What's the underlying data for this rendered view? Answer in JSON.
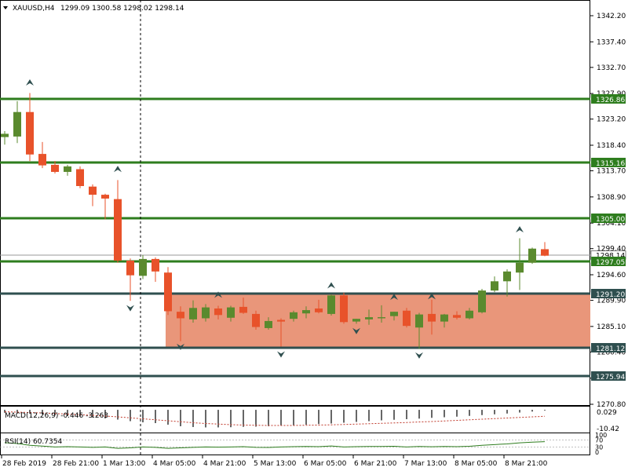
{
  "chart_data": {
    "type": "candlestick",
    "symbol_header": "XAUUSD,H4",
    "ohlc_header": "1299.09 1300.58 1298.02 1298.14",
    "colors": {
      "bull": "#5a8a2e",
      "bear": "#e8522a",
      "grid_line": "#2e7d1e",
      "dark_line": "#2f4f4f",
      "zone": "#e9967a"
    },
    "y_ticks": [
      "1342.20",
      "1337.40",
      "1332.70",
      "1327.90",
      "1323.20",
      "1318.40",
      "1313.70",
      "1308.90",
      "1304.10",
      "1299.40",
      "1294.60",
      "1289.90",
      "1285.10",
      "1280.40",
      "1275.60",
      "1270.80"
    ],
    "x_ticks": [
      "28 Feb 2019",
      "28 Feb 21:00",
      "1 Mar 13:00",
      "4 Mar 05:00",
      "4 Mar 21:00",
      "5 Mar 13:00",
      "6 Mar 05:00",
      "6 Mar 21:00",
      "7 Mar 13:00",
      "8 Mar 05:00",
      "8 Mar 21:00"
    ],
    "levels": [
      {
        "price": 1326.86,
        "label": "1326.86",
        "color": "#2e7d1e"
      },
      {
        "price": 1315.16,
        "label": "1315.16",
        "color": "#2e7d1e"
      },
      {
        "price": 1305.0,
        "label": "1305.00",
        "color": "#2e7d1e"
      },
      {
        "price": 1297.05,
        "label": "1297.05",
        "color": "#2e7d1e"
      },
      {
        "price": 1291.2,
        "label": "1291.20",
        "color": "#2f4f4f"
      },
      {
        "price": 1281.12,
        "label": "1281.12",
        "color": "#2f4f4f"
      },
      {
        "price": 1275.94,
        "label": "1275.94",
        "color": "#2f4f4f"
      }
    ],
    "current_price_label": "1298.14",
    "zone": {
      "from": 1281.12,
      "to": 1291.2
    },
    "candles": [
      {
        "o": 1319.9,
        "h": 1321.0,
        "l": 1318.5,
        "c": 1320.5
      },
      {
        "o": 1320.0,
        "h": 1326.5,
        "l": 1318.8,
        "c": 1324.5
      },
      {
        "o": 1324.5,
        "h": 1328.0,
        "l": 1315.5,
        "c": 1316.7
      },
      {
        "o": 1316.8,
        "h": 1319.0,
        "l": 1314.2,
        "c": 1314.7
      },
      {
        "o": 1314.8,
        "h": 1315.5,
        "l": 1313.2,
        "c": 1313.5
      },
      {
        "o": 1313.5,
        "h": 1314.8,
        "l": 1312.8,
        "c": 1314.5
      },
      {
        "o": 1314.0,
        "h": 1314.5,
        "l": 1310.5,
        "c": 1310.9
      },
      {
        "o": 1310.8,
        "h": 1311.2,
        "l": 1307.2,
        "c": 1309.3
      },
      {
        "o": 1309.3,
        "h": 1309.5,
        "l": 1304.8,
        "c": 1308.6
      },
      {
        "o": 1308.5,
        "h": 1312.0,
        "l": 1296.8,
        "c": 1297.2
      },
      {
        "o": 1297.2,
        "h": 1297.6,
        "l": 1289.8,
        "c": 1294.5
      },
      {
        "o": 1294.4,
        "h": 1298.2,
        "l": 1293.8,
        "c": 1297.5
      },
      {
        "o": 1297.5,
        "h": 1297.8,
        "l": 1293.3,
        "c": 1295.2
      },
      {
        "o": 1295.0,
        "h": 1296.0,
        "l": 1287.2,
        "c": 1287.9
      },
      {
        "o": 1287.8,
        "h": 1288.8,
        "l": 1282.4,
        "c": 1286.6
      },
      {
        "o": 1286.4,
        "h": 1289.9,
        "l": 1285.8,
        "c": 1288.5
      },
      {
        "o": 1286.6,
        "h": 1289.2,
        "l": 1286.0,
        "c": 1288.6
      },
      {
        "o": 1288.4,
        "h": 1288.9,
        "l": 1286.4,
        "c": 1287.2
      },
      {
        "o": 1286.7,
        "h": 1288.9,
        "l": 1286.0,
        "c": 1288.6
      },
      {
        "o": 1288.7,
        "h": 1290.4,
        "l": 1287.4,
        "c": 1287.6
      },
      {
        "o": 1287.4,
        "h": 1288.0,
        "l": 1284.5,
        "c": 1285.0
      },
      {
        "o": 1284.8,
        "h": 1286.8,
        "l": 1284.5,
        "c": 1286.1
      },
      {
        "o": 1286.3,
        "h": 1286.6,
        "l": 1281.4,
        "c": 1286.0
      },
      {
        "o": 1286.5,
        "h": 1288.0,
        "l": 1286.0,
        "c": 1287.7
      },
      {
        "o": 1287.5,
        "h": 1288.8,
        "l": 1286.6,
        "c": 1288.1
      },
      {
        "o": 1288.4,
        "h": 1290.0,
        "l": 1287.5,
        "c": 1287.7
      },
      {
        "o": 1287.4,
        "h": 1291.0,
        "l": 1287.1,
        "c": 1290.8
      },
      {
        "o": 1290.8,
        "h": 1291.3,
        "l": 1285.6,
        "c": 1285.9
      },
      {
        "o": 1286.0,
        "h": 1286.5,
        "l": 1285.6,
        "c": 1286.5
      },
      {
        "o": 1286.4,
        "h": 1288.2,
        "l": 1285.4,
        "c": 1286.8
      },
      {
        "o": 1286.6,
        "h": 1289.0,
        "l": 1285.8,
        "c": 1286.8
      },
      {
        "o": 1287.0,
        "h": 1287.8,
        "l": 1286.2,
        "c": 1287.8
      },
      {
        "o": 1288.0,
        "h": 1288.5,
        "l": 1284.9,
        "c": 1285.2
      },
      {
        "o": 1284.9,
        "h": 1287.6,
        "l": 1281.0,
        "c": 1287.3
      },
      {
        "o": 1287.4,
        "h": 1290.0,
        "l": 1283.6,
        "c": 1286.0
      },
      {
        "o": 1286.0,
        "h": 1287.4,
        "l": 1284.9,
        "c": 1287.3
      },
      {
        "o": 1287.2,
        "h": 1287.9,
        "l": 1286.4,
        "c": 1286.7
      },
      {
        "o": 1286.6,
        "h": 1288.5,
        "l": 1286.4,
        "c": 1288.0
      },
      {
        "o": 1287.7,
        "h": 1292.0,
        "l": 1287.5,
        "c": 1291.7
      },
      {
        "o": 1291.7,
        "h": 1294.3,
        "l": 1291.4,
        "c": 1293.4
      },
      {
        "o": 1293.4,
        "h": 1295.6,
        "l": 1290.6,
        "c": 1295.2
      },
      {
        "o": 1295.0,
        "h": 1301.3,
        "l": 1291.8,
        "c": 1296.8
      },
      {
        "o": 1296.8,
        "h": 1299.6,
        "l": 1296.6,
        "c": 1299.4
      },
      {
        "o": 1299.3,
        "h": 1300.6,
        "l": 1298.0,
        "c": 1298.1
      }
    ],
    "fractals_up": [
      {
        "i": 2,
        "price": 1329.8
      },
      {
        "i": 9,
        "price": 1313.9
      },
      {
        "i": 17,
        "price": 1290.8
      },
      {
        "i": 26,
        "price": 1292.5
      },
      {
        "i": 31,
        "price": 1290.4
      },
      {
        "i": 34,
        "price": 1290.5
      },
      {
        "i": 41,
        "price": 1302.8
      }
    ],
    "fractals_down": [
      {
        "i": 10,
        "price": 1288.6
      },
      {
        "i": 14,
        "price": 1281.5
      },
      {
        "i": 22,
        "price": 1280.1
      },
      {
        "i": 28,
        "price": 1284.4
      },
      {
        "i": 33,
        "price": 1279.9
      }
    ],
    "macd": {
      "label": "MACD(12,26,9) -0.446 -3.263",
      "y_ticks": [
        "0.029",
        "-10.42"
      ],
      "ylim": [
        -10.42,
        0.029
      ],
      "hist": [
        -1.5,
        -1.8,
        -2.0,
        -2.4,
        -2.8,
        -3.2,
        -3.6,
        -4.0,
        -4.4,
        -5.0,
        -5.8,
        -6.4,
        -6.8,
        -7.6,
        -8.4,
        -8.8,
        -9.0,
        -9.0,
        -8.9,
        -8.7,
        -8.6,
        -8.4,
        -8.2,
        -7.9,
        -7.6,
        -7.3,
        -7.0,
        -6.6,
        -6.2,
        -5.8,
        -5.4,
        -5.1,
        -4.8,
        -4.5,
        -4.1,
        -3.8,
        -3.5,
        -3.1,
        -2.7,
        -2.3,
        -1.9,
        -1.4,
        -0.9,
        -0.4
      ],
      "signal": [
        -1.0,
        -1.2,
        -1.4,
        -1.6,
        -1.9,
        -2.2,
        -2.5,
        -2.8,
        -3.2,
        -3.6,
        -4.1,
        -4.6,
        -5.1,
        -5.6,
        -6.1,
        -6.6,
        -7.0,
        -7.3,
        -7.6,
        -7.8,
        -7.9,
        -8.0,
        -8.0,
        -8.0,
        -7.9,
        -7.8,
        -7.7,
        -7.5,
        -7.3,
        -7.1,
        -6.9,
        -6.7,
        -6.5,
        -6.2,
        -6.0,
        -5.7,
        -5.4,
        -5.1,
        -4.8,
        -4.5,
        -4.2,
        -3.9,
        -3.6,
        -3.3
      ]
    },
    "rsi": {
      "label": "RSI(14) 60.7354",
      "y_ticks": [
        "100",
        "70",
        "30",
        "0"
      ],
      "values": [
        55,
        50,
        40,
        35,
        30,
        32,
        30,
        28,
        30,
        22,
        25,
        30,
        28,
        22,
        25,
        28,
        30,
        29,
        30,
        32,
        28,
        27,
        30,
        32,
        33,
        32,
        36,
        30,
        32,
        33,
        33,
        34,
        30,
        33,
        31,
        33,
        32,
        34,
        40,
        44,
        48,
        54,
        58,
        60.7
      ]
    }
  }
}
